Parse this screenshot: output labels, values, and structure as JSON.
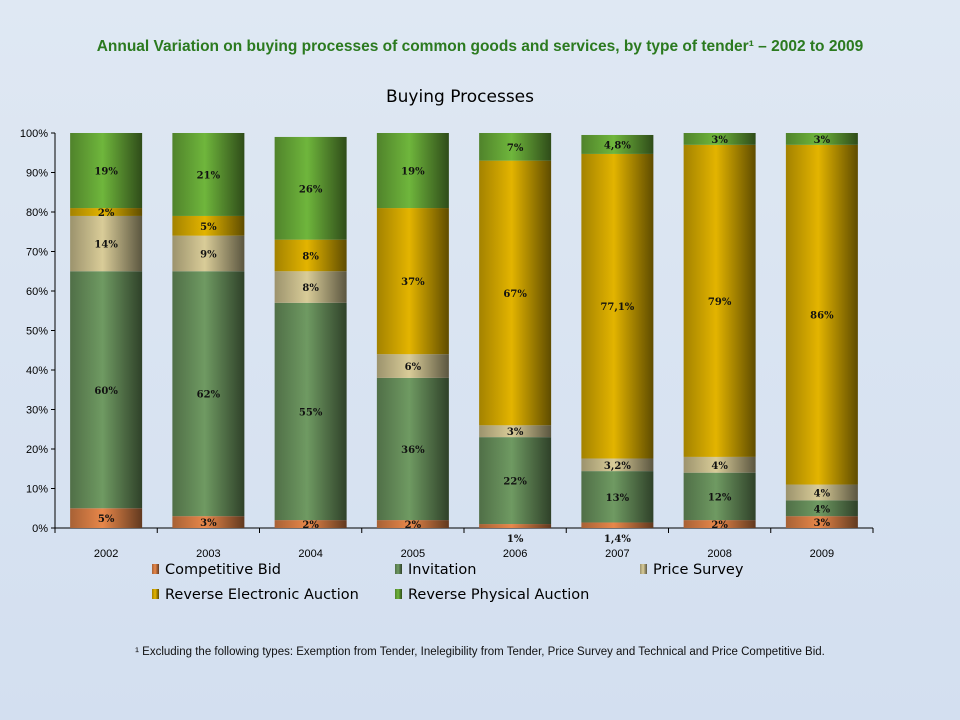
{
  "page": {
    "heading": "Annual Variation on buying processes of common goods and services, by type of tender¹ – 2002 to 2009",
    "footnote": "¹ Excluding the following types: Exemption from Tender, Inelegibility from Tender, Price Survey and Technical and Price Competitive Bid."
  },
  "colors": {
    "competitive_bid": "#e8874a",
    "invitation": "#6f9a62",
    "price_survey": "#d9cc98",
    "reverse_electronic_auction": "#e3b400",
    "reverse_physical_auction": "#6fb63c"
  },
  "chart_data": {
    "type": "bar",
    "stacked": true,
    "title": "Buying Processes",
    "xlabel": "",
    "ylabel": "",
    "ylim": [
      0,
      100
    ],
    "yticks": [
      "0%",
      "10%",
      "20%",
      "30%",
      "40%",
      "50%",
      "60%",
      "70%",
      "80%",
      "90%",
      "100%"
    ],
    "grid": false,
    "legend_position": "bottom",
    "categories": [
      "2002",
      "2003",
      "2004",
      "2005",
      "2006",
      "2007",
      "2008",
      "2009"
    ],
    "series": [
      {
        "name": "Competitive Bid",
        "color_key": "competitive_bid",
        "values": [
          5,
          3,
          2,
          2,
          1,
          1.4,
          2,
          3
        ],
        "labels": [
          "5%",
          "3%",
          "2%",
          "2%",
          "1%",
          "1,4%",
          "2%",
          "3%"
        ]
      },
      {
        "name": "Invitation",
        "color_key": "invitation",
        "values": [
          60,
          62,
          55,
          36,
          22,
          13,
          12,
          4
        ],
        "labels": [
          "60%",
          "62%",
          "55%",
          "36%",
          "22%",
          "13%",
          "12%",
          "4%"
        ]
      },
      {
        "name": "Price Survey",
        "color_key": "price_survey",
        "values": [
          14,
          9,
          8,
          6,
          3,
          3.2,
          4,
          4
        ],
        "labels": [
          "14%",
          "9%",
          "8%",
          "6%",
          "3%",
          "3,2%",
          "4%",
          "4%"
        ]
      },
      {
        "name": "Reverse Electronic Auction",
        "color_key": "reverse_electronic_auction",
        "values": [
          2,
          5,
          8,
          37,
          67,
          77.1,
          79,
          86
        ],
        "labels": [
          "2%",
          "5%",
          "8%",
          "37%",
          "67%",
          "77,1%",
          "79%",
          "86%"
        ]
      },
      {
        "name": "Reverse Physical Auction",
        "color_key": "reverse_physical_auction",
        "values": [
          19,
          21,
          26,
          19,
          7,
          4.8,
          3,
          3
        ],
        "labels": [
          "19%",
          "21%",
          "26%",
          "19%",
          "7%",
          "4,8%",
          "3%",
          "3%"
        ]
      }
    ]
  }
}
